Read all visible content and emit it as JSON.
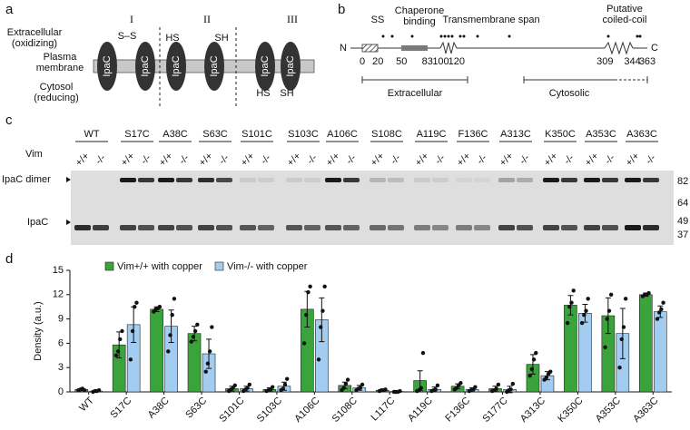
{
  "panel_labels": [
    "a",
    "b",
    "c",
    "d"
  ],
  "panel_a": {
    "regions": [
      [
        "Extracellular",
        "(oxidizing)"
      ],
      [
        "Plasma",
        "membrane"
      ],
      [
        "Cytosol",
        "(reducing)"
      ]
    ],
    "protein": "IpaC",
    "states": [
      "I",
      "II",
      "III"
    ],
    "disulfide": "S–S",
    "thiols": [
      "HS",
      "SH",
      "HS",
      "SH"
    ]
  },
  "panel_b": {
    "domains": [
      [
        "SS"
      ],
      [
        "Chaperone",
        "binding"
      ],
      [
        "Transmembrane span"
      ],
      [
        "Putative",
        "coiled-coil"
      ]
    ],
    "n_term": "N",
    "c_term": "C",
    "positions": [
      0,
      20,
      50,
      83,
      100,
      120,
      309,
      344,
      363
    ],
    "regions": [
      "Extracellular",
      "Cytosolic"
    ]
  },
  "panel_c": {
    "mutants": [
      "WT",
      "S17C",
      "A38C",
      "S63C",
      "S101C",
      "S103C",
      "A106C",
      "S108C",
      "A119C",
      "F136C",
      "A313C",
      "K350C",
      "A353C",
      "A363C"
    ],
    "vim_label": "Vim",
    "genotypes": [
      "+/+",
      "-/-"
    ],
    "bands": [
      "IpaC dimer",
      "IpaC"
    ],
    "markers": [
      82,
      64,
      49,
      37
    ]
  },
  "chart_data": {
    "type": "bar",
    "y_label": "Density (a.u.)",
    "categories": [
      "WT",
      "S17C",
      "A38C",
      "S63C",
      "S101C",
      "S103C",
      "A106C",
      "S108C",
      "L117C",
      "A119C",
      "F136C",
      "S177C",
      "A313C",
      "K350C",
      "A353C",
      "A363C"
    ],
    "series": [
      {
        "name": "Vim+/+ with copper",
        "color": "#3ba33b",
        "values": [
          0.3,
          5.8,
          10.2,
          7.2,
          0.4,
          0.3,
          10.2,
          0.8,
          0.2,
          1.4,
          0.7,
          0.4,
          3.4,
          10.7,
          9.4,
          12.0
        ],
        "errors": [
          0.1,
          1.6,
          0.3,
          0.9,
          0.3,
          0.2,
          2.2,
          0.4,
          0.1,
          1.2,
          0.3,
          0.3,
          1.2,
          1.2,
          2.2,
          0.2
        ],
        "points": [
          [
            0.2,
            0.3,
            0.4,
            0.2
          ],
          [
            4.5,
            5.0,
            6.5,
            7.5
          ],
          [
            9.9,
            10.2,
            10.3,
            10.5
          ],
          [
            6.2,
            6.8,
            7.5,
            8.3
          ],
          [
            0.1,
            0.3,
            0.5,
            0.8
          ],
          [
            0.1,
            0.2,
            0.3,
            0.6
          ],
          [
            6.0,
            9.5,
            12.3,
            13.0
          ],
          [
            0.2,
            0.5,
            1.0,
            1.5
          ],
          [
            0.1,
            0.2,
            0.2,
            0.3
          ],
          [
            0.1,
            0.2,
            0.5,
            4.8
          ],
          [
            0.3,
            0.5,
            0.8,
            1.1
          ],
          [
            0.1,
            0.2,
            0.4,
            0.9
          ],
          [
            2.0,
            2.8,
            4.0,
            4.8
          ],
          [
            8.5,
            10.5,
            11.0,
            12.5
          ],
          [
            5.5,
            9.0,
            10.0,
            12.0
          ],
          [
            11.8,
            12.0,
            12.0,
            12.2
          ]
        ]
      },
      {
        "name": "Vim-/- with copper",
        "color": "#a3cdf0",
        "values": [
          0.1,
          8.3,
          8.1,
          4.7,
          0.4,
          0.7,
          8.9,
          0.5,
          0.05,
          0.3,
          0.3,
          0.3,
          2.0,
          9.7,
          7.2,
          9.9
        ],
        "errors": [
          0.1,
          2.2,
          2.0,
          1.8,
          0.3,
          0.5,
          2.7,
          0.3,
          0.05,
          0.3,
          0.2,
          0.4,
          0.5,
          1.1,
          3.1,
          0.7
        ],
        "points": [
          [
            0.0,
            0.1,
            0.1,
            0.2
          ],
          [
            4.0,
            7.5,
            10.5,
            11.0
          ],
          [
            5.0,
            7.0,
            9.5,
            11.5
          ],
          [
            2.5,
            3.5,
            5.0,
            8.0
          ],
          [
            0.1,
            0.3,
            0.5,
            0.9
          ],
          [
            0.2,
            0.4,
            0.9,
            1.6
          ],
          [
            4.0,
            8.0,
            10.0,
            13.0
          ],
          [
            0.2,
            0.4,
            0.5,
            0.9
          ],
          [
            0.0,
            0.0,
            0.0,
            0.1
          ],
          [
            0.1,
            0.2,
            0.3,
            0.8
          ],
          [
            0.1,
            0.2,
            0.3,
            0.6
          ],
          [
            0.0,
            0.2,
            0.3,
            1.0
          ],
          [
            1.5,
            1.8,
            2.2,
            2.5
          ],
          [
            8.5,
            9.5,
            10.0,
            11.5
          ],
          [
            3.0,
            6.5,
            8.0,
            11.5
          ],
          [
            9.0,
            9.8,
            10.2,
            11.0
          ]
        ]
      }
    ],
    "ylim": [
      0,
      15
    ],
    "yticks": [
      0,
      3,
      6,
      9,
      12,
      15
    ]
  }
}
